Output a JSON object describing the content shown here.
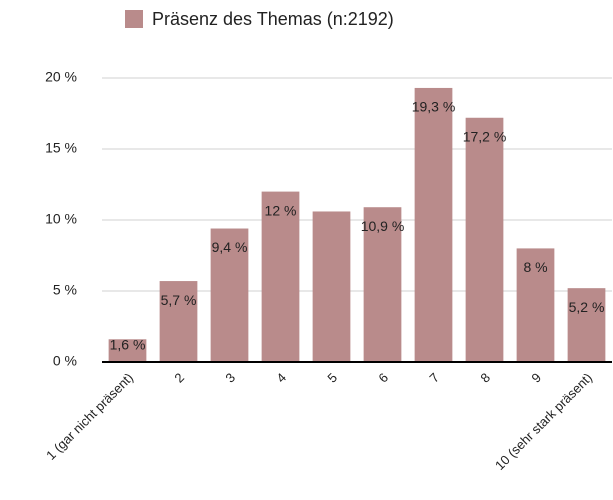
{
  "chart_data": {
    "type": "bar",
    "categories": [
      "1 (gar nicht präsent)",
      "2",
      "3",
      "4",
      "5",
      "6",
      "7",
      "8",
      "9",
      "10 (sehr stark präsent)"
    ],
    "series": [
      {
        "name": "Präsenz des Themas (n:2192)",
        "color": "#b98b8b",
        "values": [
          1.6,
          5.7,
          9.4,
          12,
          10.6,
          10.9,
          19.3,
          17.2,
          8,
          5.2
        ],
        "value_labels": [
          "1,6 %",
          "5,7 %",
          "9,4 %",
          "12 %",
          null,
          "10,9 %",
          "19,3 %",
          "17,2 %",
          "8 %",
          "5,2 %"
        ]
      }
    ],
    "ylim": [
      0,
      20
    ],
    "yticks": [
      {
        "value": 0,
        "label": "0 %"
      },
      {
        "value": 5,
        "label": "5 %"
      },
      {
        "value": 10,
        "label": "10 %"
      },
      {
        "value": 15,
        "label": "15 %"
      },
      {
        "value": 20,
        "label": "20 %"
      }
    ],
    "grid": true,
    "legend": "top"
  }
}
